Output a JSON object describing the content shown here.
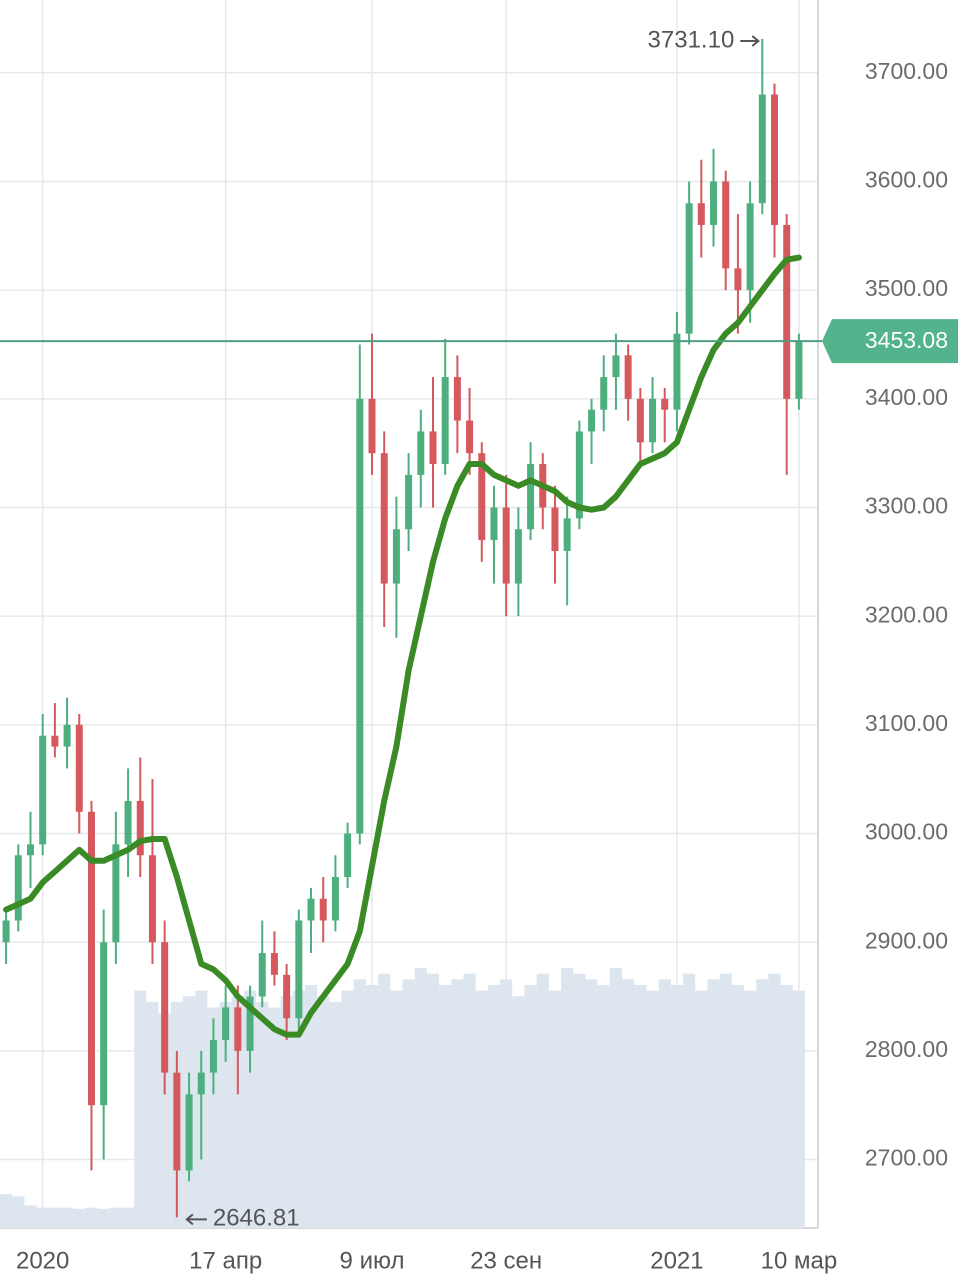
{
  "chart_data": {
    "type": "candlestick",
    "categories": [
      null,
      null,
      null,
      "2020",
      null,
      null,
      null,
      null,
      null,
      null,
      null,
      null,
      null,
      null,
      null,
      null,
      null,
      null,
      "17 апр",
      null,
      null,
      null,
      null,
      null,
      null,
      null,
      null,
      null,
      null,
      null,
      "9 июл",
      null,
      null,
      null,
      null,
      null,
      null,
      null,
      null,
      null,
      null,
      "23 сен",
      null,
      null,
      null,
      null,
      null,
      null,
      null,
      null,
      null,
      null,
      null,
      null,
      null,
      "2021",
      null,
      null,
      null,
      null,
      null,
      null,
      null,
      null,
      null,
      "10 мар"
    ],
    "open": [
      2900,
      2920,
      2980,
      2990,
      3090,
      3080,
      3100,
      3020,
      2750,
      2900,
      2990,
      3030,
      2980,
      2900,
      2780,
      2690,
      2760,
      2780,
      2810,
      2840,
      2800,
      2850,
      2890,
      2870,
      2830,
      2920,
      2940,
      2920,
      2960,
      3000,
      3400,
      3350,
      3230,
      3280,
      3330,
      3370,
      3340,
      3420,
      3380,
      3350,
      3270,
      3300,
      3230,
      3280,
      3340,
      3300,
      3260,
      3290,
      3370,
      3390,
      3420,
      3440,
      3400,
      3360,
      3400,
      3390,
      3460,
      3580,
      3560,
      3600,
      3520,
      3500,
      3580,
      3680,
      3560,
      3400
    ],
    "high": [
      2930,
      2990,
      3020,
      3110,
      3120,
      3125,
      3110,
      3030,
      2930,
      3020,
      3060,
      3070,
      3050,
      2920,
      2800,
      2780,
      2800,
      2830,
      2860,
      2860,
      2860,
      2920,
      2910,
      2880,
      2930,
      2950,
      2960,
      2980,
      3010,
      3450,
      3460,
      3370,
      3310,
      3350,
      3390,
      3420,
      3455,
      3440,
      3410,
      3360,
      3320,
      3330,
      3300,
      3360,
      3350,
      3320,
      3310,
      3380,
      3400,
      3440,
      3460,
      3450,
      3410,
      3420,
      3410,
      3480,
      3600,
      3620,
      3630,
      3610,
      3570,
      3600,
      3731.1,
      3690,
      3570,
      3460
    ],
    "low": [
      2880,
      2910,
      2950,
      2980,
      3070,
      3060,
      3000,
      2690,
      2700,
      2880,
      2960,
      2960,
      2880,
      2760,
      2646.81,
      2680,
      2700,
      2760,
      2790,
      2760,
      2780,
      2840,
      2860,
      2810,
      2820,
      2890,
      2900,
      2910,
      2950,
      2990,
      3330,
      3190,
      3180,
      3260,
      3300,
      3300,
      3330,
      3350,
      3330,
      3250,
      3230,
      3200,
      3200,
      3270,
      3280,
      3230,
      3210,
      3280,
      3340,
      3370,
      3390,
      3380,
      3340,
      3350,
      3360,
      3370,
      3450,
      3530,
      3540,
      3500,
      3460,
      3470,
      3570,
      3530,
      3330,
      3390
    ],
    "close": [
      2920,
      2980,
      2990,
      3090,
      3080,
      3100,
      3020,
      2750,
      2900,
      2990,
      3030,
      2980,
      2900,
      2780,
      2690,
      2760,
      2780,
      2810,
      2840,
      2800,
      2850,
      2890,
      2870,
      2830,
      2920,
      2940,
      2920,
      2960,
      3000,
      3400,
      3350,
      3230,
      3280,
      3330,
      3370,
      3340,
      3420,
      3380,
      3350,
      3270,
      3300,
      3230,
      3280,
      3340,
      3300,
      3260,
      3290,
      3370,
      3390,
      3420,
      3440,
      3400,
      3360,
      3400,
      3390,
      3460,
      3580,
      3560,
      3600,
      3520,
      3500,
      3580,
      3680,
      3560,
      3400,
      3453.08
    ],
    "high_labels": [
      null,
      null,
      null,
      null,
      null,
      null,
      null,
      null,
      null,
      null,
      null,
      null,
      null,
      null,
      null,
      null,
      null,
      null,
      null,
      null,
      null,
      null,
      null,
      null,
      null,
      null,
      null,
      null,
      null,
      null,
      null,
      null,
      null,
      null,
      null,
      null,
      null,
      null,
      null,
      null,
      null,
      null,
      null,
      null,
      null,
      null,
      null,
      null,
      null,
      null,
      null,
      null,
      null,
      null,
      null,
      null,
      null,
      null,
      null,
      null,
      null,
      null,
      "3731.10",
      null,
      null,
      null
    ],
    "low_labels": [
      null,
      null,
      null,
      null,
      null,
      null,
      null,
      null,
      null,
      null,
      null,
      null,
      null,
      null,
      "2646.81",
      null,
      null,
      null,
      null,
      null,
      null,
      null,
      null,
      null,
      null,
      null,
      null,
      null,
      null,
      null,
      null,
      null,
      null,
      null,
      null,
      null,
      null,
      null,
      null,
      null,
      null,
      null,
      null,
      null,
      null,
      null,
      null,
      null,
      null,
      null,
      null,
      null,
      null,
      null,
      null,
      null,
      null,
      null,
      null,
      null,
      null,
      null,
      null,
      null,
      null,
      null
    ],
    "last_label": "3453.08",
    "up_color": "#4caf7d",
    "down_color": "#d4585c",
    "moving_average": {
      "color": "#3a8a26",
      "values": [
        2930,
        2935,
        2940,
        2955,
        2965,
        2975,
        2985,
        2975,
        2975,
        2980,
        2985,
        2993,
        2995,
        2995,
        2960,
        2920,
        2880,
        2875,
        2865,
        2850,
        2840,
        2830,
        2820,
        2815,
        2815,
        2835,
        2850,
        2865,
        2880,
        2910,
        2970,
        3030,
        3080,
        3150,
        3200,
        3250,
        3290,
        3320,
        3340,
        3340,
        3330,
        3325,
        3320,
        3325,
        3320,
        3315,
        3305,
        3300,
        3298,
        3300,
        3310,
        3325,
        3340,
        3345,
        3350,
        3360,
        3390,
        3420,
        3445,
        3460,
        3470,
        3485,
        3500,
        3515,
        3528,
        3530
      ]
    },
    "volume": {
      "color": "#dde6ef",
      "values": [
        30,
        28,
        20,
        18,
        18,
        18,
        17,
        18,
        17,
        18,
        18,
        210,
        200,
        190,
        200,
        205,
        210,
        195,
        200,
        205,
        210,
        200,
        195,
        205,
        210,
        215,
        205,
        200,
        210,
        220,
        215,
        225,
        210,
        220,
        230,
        225,
        215,
        220,
        225,
        210,
        215,
        220,
        205,
        215,
        225,
        210,
        230,
        225,
        220,
        215,
        230,
        220,
        215,
        210,
        220,
        215,
        225,
        210,
        220,
        225,
        215,
        210,
        220,
        225,
        215,
        210
      ]
    },
    "ylim": [
      2637,
      3767
    ],
    "yticks": [
      {
        "value": 2700,
        "label": "2700.00"
      },
      {
        "value": 2800,
        "label": "2800.00"
      },
      {
        "value": 2900,
        "label": "2900.00"
      },
      {
        "value": 3000,
        "label": "3000.00"
      },
      {
        "value": 3100,
        "label": "3100.00"
      },
      {
        "value": 3200,
        "label": "3200.00"
      },
      {
        "value": 3300,
        "label": "3300.00"
      },
      {
        "value": 3400,
        "label": "3400.00"
      },
      {
        "value": 3500,
        "label": "3500.00"
      },
      {
        "value": 3600,
        "label": "3600.00"
      },
      {
        "value": 3700,
        "label": "3700.00"
      }
    ],
    "grid": true
  }
}
